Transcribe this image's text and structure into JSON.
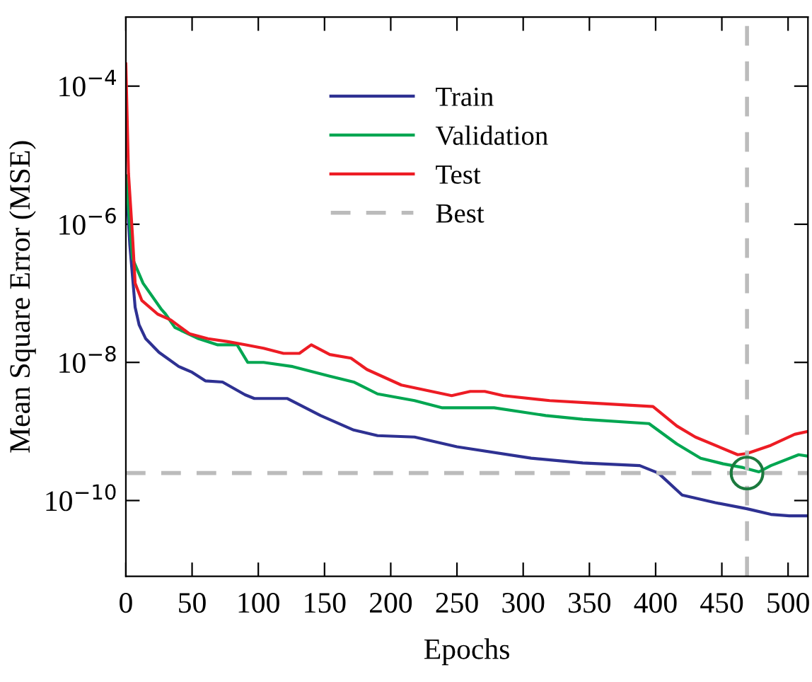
{
  "chart_data": {
    "type": "line",
    "xlabel": "Epochs",
    "ylabel": "Mean Square Error (MSE)",
    "log": "y",
    "xlim": [
      0,
      515
    ],
    "ylim": [
      8e-12,
      0.001
    ],
    "xticks": [
      0,
      50,
      100,
      150,
      200,
      250,
      300,
      350,
      400,
      450,
      500
    ],
    "yticks": [
      {
        "value": 1e-10,
        "label": "10$^{−10}$"
      },
      {
        "value": 1e-08,
        "label": "10$^{−8}$"
      },
      {
        "value": 1e-06,
        "label": "10$^{−6}$"
      },
      {
        "value": 0.0001,
        "label": "10$^{−4}$"
      }
    ],
    "legend": "top",
    "grid": false,
    "line_style": "solid",
    "series": [
      {
        "name": "Train",
        "color": "#2e3192",
        "x": [
          0,
          3,
          7,
          10,
          15,
          25,
          40,
          50,
          60,
          73,
          90,
          97,
          122,
          147,
          172,
          190,
          218,
          250,
          306,
          345,
          388,
          402,
          420,
          445,
          469,
          487,
          501,
          515
        ],
        "values": [
          5e-06,
          5e-07,
          6.3e-08,
          3.5e-08,
          2.2e-08,
          1.4e-08,
          8.7e-09,
          7.2e-09,
          5.4e-09,
          5.2e-09,
          3.4e-09,
          3e-09,
          3e-09,
          1.7e-09,
          1.05e-09,
          8.7e-10,
          8.3e-10,
          6e-10,
          4.1e-10,
          3.5e-10,
          3.2e-10,
          2.5e-10,
          1.2e-10,
          9.3e-11,
          7.6e-11,
          6.3e-11,
          6e-11,
          6e-11
        ]
      },
      {
        "name": "Validation",
        "color": "#00a651",
        "x": [
          0,
          5,
          13,
          27,
          30,
          37,
          55,
          69,
          84,
          92,
          104,
          126,
          154,
          172,
          190,
          218,
          239,
          278,
          317,
          345,
          395,
          416,
          434,
          451,
          466,
          478,
          487,
          508,
          515
        ],
        "values": [
          5e-06,
          3.2e-07,
          1.4e-07,
          5.8e-08,
          5e-08,
          3.2e-08,
          2.2e-08,
          1.8e-08,
          1.8e-08,
          1e-08,
          1e-08,
          8.7e-09,
          6.3e-09,
          5.2e-09,
          3.5e-09,
          2.8e-09,
          2.2e-09,
          2.2e-09,
          1.7e-09,
          1.5e-09,
          1.3e-09,
          6.6e-10,
          4.1e-10,
          3.4e-10,
          3e-10,
          2.6e-10,
          3.2e-10,
          4.6e-10,
          4.4e-10
        ]
      },
      {
        "name": "Test",
        "color": "#ed1c24",
        "x": [
          0,
          2,
          5,
          7,
          12,
          24,
          34,
          48,
          62,
          77,
          90,
          104,
          119,
          131,
          140,
          154,
          170,
          182,
          208,
          246,
          260,
          271,
          285,
          320,
          349,
          398,
          416,
          430,
          462,
          469,
          487,
          505,
          515
        ],
        "values": [
          0.00021,
          5.4e-06,
          6.9e-07,
          1.4e-07,
          7.9e-08,
          5e-08,
          4.1e-08,
          2.6e-08,
          2.2e-08,
          2e-08,
          1.8e-08,
          1.6e-08,
          1.35e-08,
          1.35e-08,
          1.8e-08,
          1.3e-08,
          1.15e-08,
          7.9e-09,
          4.7e-09,
          3.3e-09,
          3.8e-09,
          3.8e-09,
          3.3e-09,
          2.8e-09,
          2.6e-09,
          2.3e-09,
          1.2e-09,
          8.3e-10,
          4.6e-10,
          4.8e-10,
          6.3e-10,
          9.1e-10,
          1e-09
        ]
      },
      {
        "type": "scatter",
        "marker": "circle",
        "color": "#1b7a3e",
        "x": [
          469
        ],
        "values": [
          2.5e-10
        ]
      }
    ],
    "ref_lines": [
      {
        "axis": "x",
        "value": 469,
        "color": "#bbbbbb",
        "line_style": "dashed"
      },
      {
        "axis": "y",
        "value": 2.5e-10,
        "label": "Best",
        "color": "#bbbbbb",
        "line_style": "dashed"
      }
    ]
  }
}
